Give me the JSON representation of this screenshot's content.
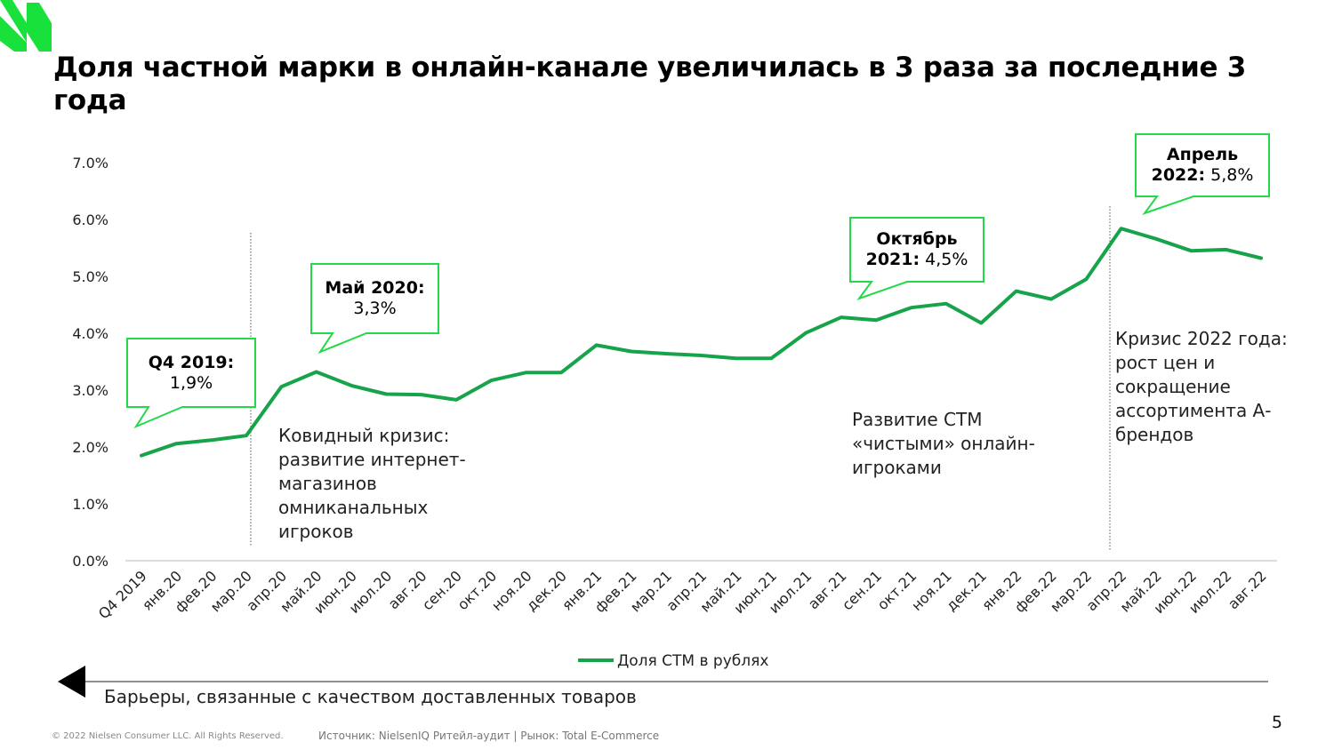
{
  "title": "Доля частной марки в онлайн-канале увеличилась в 3 раза за последние 3 года",
  "colors": {
    "line": "#16a34a",
    "callout_border": "#22d94a",
    "logo": "#19e13c"
  },
  "chart_data": {
    "type": "line",
    "categories": [
      "Q4 2019",
      "янв.20",
      "фев.20",
      "мар.20",
      "апр.20",
      "май.20",
      "июн.20",
      "июл.20",
      "авг.20",
      "сен.20",
      "окт.20",
      "ноя.20",
      "дек.20",
      "янв.21",
      "фев.21",
      "мар.21",
      "апр.21",
      "май.21",
      "июн.21",
      "июл.21",
      "авг.21",
      "сен.21",
      "окт.21",
      "ноя.21",
      "дек.21",
      "янв.22",
      "фев.22",
      "мар.22",
      "апр.22",
      "май.22",
      "июн.22",
      "июл.22",
      "авг.22"
    ],
    "series": [
      {
        "name": "Доля СТМ в рублях",
        "values": [
          1.85,
          2.06,
          2.12,
          2.2,
          3.06,
          3.32,
          3.08,
          2.93,
          2.92,
          2.83,
          3.17,
          3.31,
          3.31,
          3.79,
          3.68,
          3.64,
          3.61,
          3.56,
          3.56,
          4.01,
          4.28,
          4.23,
          4.45,
          4.52,
          4.18,
          4.74,
          4.6,
          4.95,
          5.84,
          5.66,
          5.45,
          5.47,
          5.32
        ]
      }
    ],
    "y_ticks": [
      "0.0%",
      "1.0%",
      "2.0%",
      "3.0%",
      "4.0%",
      "5.0%",
      "6.0%",
      "7.0%"
    ],
    "ylim": [
      0,
      7
    ],
    "grid": false,
    "legend_position": "bottom"
  },
  "callouts": [
    {
      "bold": "Q4 2019:",
      "value": "1,9%"
    },
    {
      "bold": "Май 2020:",
      "value": "3,3%"
    },
    {
      "bold_line1": "Октябрь",
      "bold_line2": "2021:",
      "value": "4,5%"
    },
    {
      "bold_line1": "Апрель",
      "bold_line2": "2022:",
      "value": "5,8%"
    }
  ],
  "notes": {
    "covid": "Ковидный кризис:\nразвитие интернет-\nмагазинов\nомниканальных\nигроков",
    "stm": "Развитие СТМ\n«чистыми» онлайн-\nигроками",
    "crisis2022": "Кризис 2022 года:\nрост цен и\nсокращение\nассортимента А-\nбрендов"
  },
  "barrier_text": "Барьеры, связанные с качеством доставленных товаров",
  "page_number": "5",
  "copyright": "© 2022 Nielsen Consumer LLC. All Rights Reserved.",
  "source": "Источник: NielsenIQ Ритейл-аудит | Рынок: Total E-Commerce"
}
